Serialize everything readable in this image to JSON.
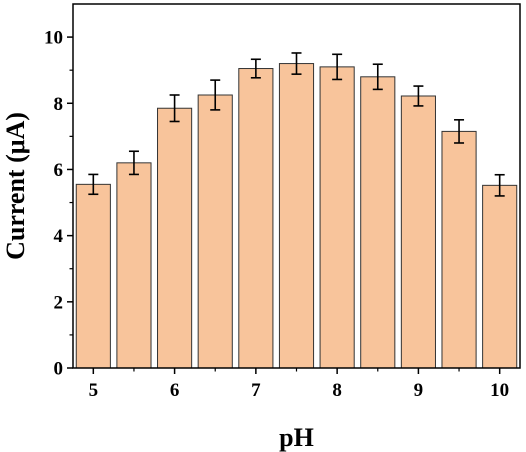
{
  "chart_data": {
    "type": "bar",
    "xlabel": "pH",
    "ylabel": "Current (μA)",
    "x": [
      5,
      5.5,
      6,
      6.5,
      7,
      7.5,
      8,
      8.5,
      9,
      9.5,
      10
    ],
    "values": [
      5.55,
      6.2,
      7.85,
      8.25,
      9.05,
      9.2,
      9.1,
      8.8,
      8.22,
      7.15,
      5.52
    ],
    "errors": [
      0.3,
      0.35,
      0.4,
      0.45,
      0.28,
      0.32,
      0.38,
      0.38,
      0.3,
      0.35,
      0.32
    ],
    "xlim": [
      4.75,
      10.25
    ],
    "ylim": [
      0,
      11
    ],
    "xticks": [
      "5",
      "6",
      "7",
      "8",
      "9",
      "10"
    ],
    "xtick_values": [
      5,
      6,
      7,
      8,
      9,
      10
    ],
    "yticks": [
      "0",
      "2",
      "4",
      "6",
      "8",
      "10"
    ],
    "ytick_values": [
      0,
      2,
      4,
      6,
      8,
      10
    ],
    "bar_color": "#f8c49b",
    "bar_edge_color": "#333333",
    "grid": false,
    "legend": false
  }
}
